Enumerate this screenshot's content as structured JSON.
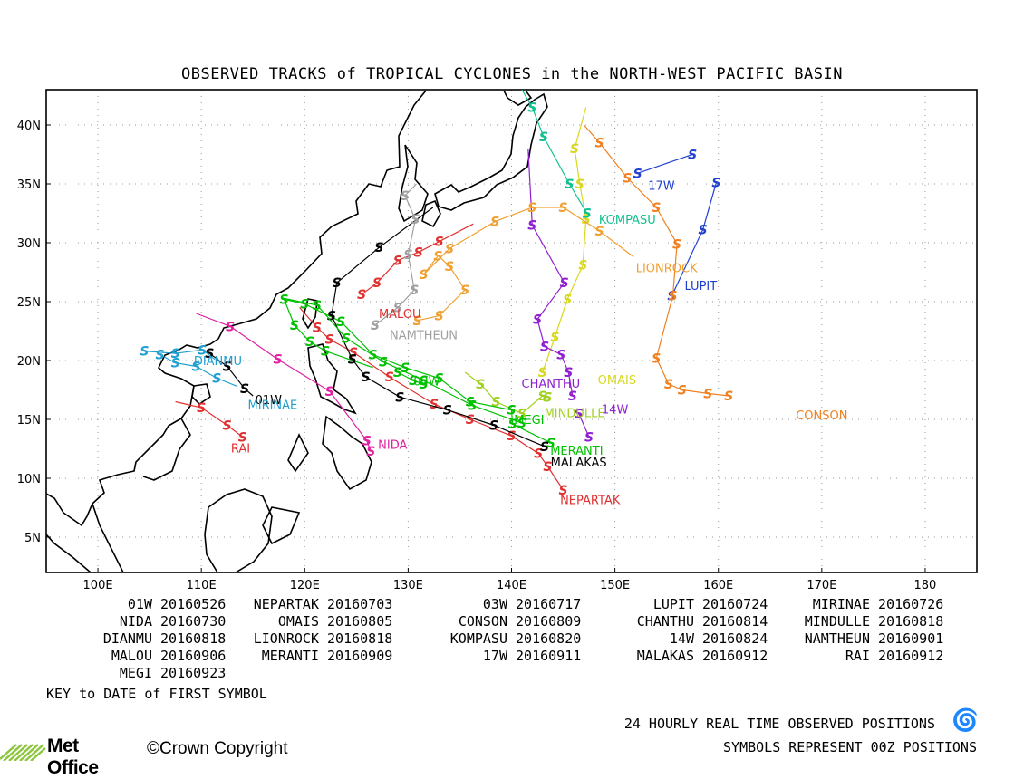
{
  "title": "OBSERVED TRACKS of TROPICAL CYCLONES in the NORTH-WEST PACIFIC BASIN",
  "map": {
    "lon_range": [
      95,
      185
    ],
    "lat_range": [
      2,
      43
    ],
    "lon_ticks": [
      {
        "value": 100,
        "label": "100E"
      },
      {
        "value": 110,
        "label": "110E"
      },
      {
        "value": 120,
        "label": "120E"
      },
      {
        "value": 130,
        "label": "130E"
      },
      {
        "value": 140,
        "label": "140E"
      },
      {
        "value": 150,
        "label": "150E"
      },
      {
        "value": 160,
        "label": "160E"
      },
      {
        "value": 170,
        "label": "170E"
      },
      {
        "value": 180,
        "label": "180"
      }
    ],
    "lat_ticks": [
      {
        "value": 5,
        "label": "5N"
      },
      {
        "value": 10,
        "label": "10N"
      },
      {
        "value": 15,
        "label": "15N"
      },
      {
        "value": 20,
        "label": "20N"
      },
      {
        "value": 25,
        "label": "25N"
      },
      {
        "value": 30,
        "label": "30N"
      },
      {
        "value": 35,
        "label": "35N"
      },
      {
        "value": 40,
        "label": "40N"
      }
    ],
    "grid": "dotted",
    "coastline_color": "#000000"
  },
  "storms": [
    {
      "name": "01W",
      "color": "#000000",
      "label_at": [
        116.5,
        16.3
      ],
      "track": [
        [
          110.8,
          20.6
        ],
        [
          112.5,
          19.5
        ],
        [
          114.2,
          17.6
        ],
        [
          115.0,
          17.0
        ]
      ]
    },
    {
      "name": "NEPARTAK",
      "color": "#e03030",
      "label_at": [
        147.6,
        7.8
      ],
      "track": [
        [
          145.0,
          9.0
        ],
        [
          143.5,
          11.0
        ],
        [
          142.6,
          12.1
        ],
        [
          140.0,
          13.6
        ],
        [
          136.0,
          15.0
        ],
        [
          132.5,
          16.3
        ],
        [
          128.2,
          18.6
        ],
        [
          124.7,
          20.7
        ],
        [
          122.4,
          21.8
        ],
        [
          121.2,
          22.8
        ],
        [
          119.5,
          24.5
        ]
      ]
    },
    {
      "name": "03W",
      "color": "#00c000",
      "label_at": [
        131.8,
        17.9
      ],
      "track": [
        [
          129.0,
          19.0
        ],
        [
          130.5,
          18.3
        ],
        [
          131.5,
          18.0
        ]
      ]
    },
    {
      "name": "LUPIT",
      "color": "#2040d0",
      "label_at": [
        158.3,
        26.0
      ],
      "track": [
        [
          159.8,
          35.1
        ],
        [
          158.5,
          31.1
        ],
        [
          155.5,
          25.5
        ]
      ]
    },
    {
      "name": "MIRINAE",
      "color": "#20a0d0",
      "label_at": [
        116.9,
        15.9
      ],
      "track": [
        [
          106.0,
          20.5
        ],
        [
          107.5,
          19.8
        ],
        [
          109.5,
          19.5
        ],
        [
          111.5,
          18.5
        ],
        [
          113.5,
          17.8
        ]
      ]
    },
    {
      "name": "NIDA",
      "color": "#e020a0",
      "label_at": [
        128.5,
        12.5
      ],
      "track": [
        [
          126.4,
          12.3
        ],
        [
          126.0,
          13.2
        ],
        [
          122.4,
          17.4
        ],
        [
          117.4,
          20.1
        ],
        [
          112.8,
          22.9
        ],
        [
          109.5,
          24.0
        ]
      ]
    },
    {
      "name": "OMAIS",
      "color": "#d8d820",
      "label_at": [
        150.2,
        18.0
      ],
      "track": [
        [
          143.0,
          19.0
        ],
        [
          144.2,
          22.0
        ],
        [
          145.4,
          25.2
        ],
        [
          146.9,
          28.1
        ],
        [
          147.2,
          32.0
        ],
        [
          146.6,
          35.0
        ],
        [
          146.1,
          38.0
        ],
        [
          147.2,
          41.5
        ]
      ]
    },
    {
      "name": "CONSON",
      "color": "#f08020",
      "label_at": [
        170.0,
        15.0
      ],
      "track": [
        [
          161.0,
          17.0
        ],
        [
          159.0,
          17.2
        ],
        [
          156.5,
          17.5
        ],
        [
          155.2,
          18.0
        ],
        [
          154.0,
          20.2
        ],
        [
          155.6,
          25.5
        ],
        [
          156.0,
          29.9
        ],
        [
          154.0,
          33.0
        ],
        [
          151.2,
          35.5
        ],
        [
          148.5,
          38.5
        ],
        [
          147.0,
          40.0
        ]
      ]
    },
    {
      "name": "CHANTHU",
      "color": "#9020d0",
      "label_at": [
        143.8,
        17.7
      ],
      "track": [
        [
          145.9,
          17.0
        ],
        [
          145.5,
          19.0
        ],
        [
          144.8,
          20.5
        ],
        [
          143.2,
          21.2
        ],
        [
          142.5,
          23.5
        ],
        [
          145.1,
          26.6
        ],
        [
          142.0,
          31.5
        ],
        [
          141.6,
          38.0
        ]
      ]
    },
    {
      "name": "MINDULLE",
      "color": "#a0d020",
      "label_at": [
        146.1,
        15.2
      ],
      "track": [
        [
          143.5,
          16.9
        ],
        [
          143.0,
          17.0
        ],
        [
          141.0,
          15.5
        ],
        [
          138.5,
          16.5
        ],
        [
          137.0,
          18.0
        ],
        [
          135.5,
          19.0
        ]
      ]
    },
    {
      "name": "14W",
      "color": "#9020d0",
      "label_at": [
        150.0,
        15.5
      ],
      "track": [
        [
          147.5,
          13.5
        ],
        [
          146.5,
          15.5
        ]
      ]
    },
    {
      "name": "KOMPASU",
      "color": "#10c090",
      "label_at": [
        151.2,
        31.6
      ],
      "track": [
        [
          147.3,
          32.5
        ],
        [
          145.6,
          35.0
        ],
        [
          143.1,
          39.0
        ],
        [
          142.0,
          41.5
        ],
        [
          141.0,
          43.0
        ]
      ]
    },
    {
      "name": "DIANMU",
      "color": "#20a0d0",
      "label_at": [
        111.6,
        19.6
      ],
      "track": [
        [
          104.5,
          20.8
        ],
        [
          107.5,
          20.6
        ],
        [
          110.1,
          20.9
        ],
        [
          111.3,
          20.1
        ]
      ]
    },
    {
      "name": "LIONROCK",
      "color": "#f0a030",
      "label_at": [
        155.0,
        27.5
      ],
      "track": [
        [
          130.9,
          23.4
        ],
        [
          130.9,
          23.4
        ],
        [
          133.0,
          23.8
        ],
        [
          135.5,
          26.0
        ],
        [
          134.0,
          28.0
        ],
        [
          132.9,
          28.9
        ],
        [
          131.5,
          27.3
        ],
        [
          134.0,
          29.5
        ],
        [
          138.4,
          31.8
        ],
        [
          142.0,
          33.0
        ],
        [
          145.0,
          33.0
        ],
        [
          148.5,
          31.0
        ],
        [
          151.8,
          28.8
        ]
      ]
    },
    {
      "name": "17W",
      "color": "#2040d0",
      "label_at": [
        154.5,
        34.5
      ],
      "track": [
        [
          152.2,
          35.9
        ],
        [
          157.5,
          37.5
        ]
      ]
    },
    {
      "name": "MALOU",
      "color": "#e03030",
      "label_at": [
        129.2,
        23.6
      ],
      "track": [
        [
          125.5,
          25.6
        ],
        [
          127.0,
          26.6
        ],
        [
          129.0,
          28.5
        ],
        [
          131.0,
          29.2
        ],
        [
          133.0,
          30.1
        ],
        [
          136.3,
          31.6
        ]
      ]
    },
    {
      "name": "MERANTI",
      "color": "#00c000",
      "label_at": [
        146.3,
        12.0
      ],
      "track": [
        [
          143.8,
          13.0
        ],
        [
          140.1,
          14.6
        ],
        [
          140.0,
          15.8
        ],
        [
          136.0,
          16.5
        ],
        [
          133.0,
          18.5
        ],
        [
          129.7,
          19.4
        ],
        [
          126.6,
          20.5
        ],
        [
          123.5,
          23.3
        ],
        [
          120.0,
          24.8
        ],
        [
          118.0,
          25.2
        ],
        [
          119.0,
          23.0
        ],
        [
          120.5,
          21.6
        ],
        [
          122.0,
          20.8
        ],
        [
          126.6,
          19.4
        ]
      ]
    },
    {
      "name": "MALAKAS",
      "color": "#000000",
      "label_at": [
        146.5,
        11.0
      ],
      "track": [
        [
          143.2,
          12.7
        ],
        [
          138.3,
          14.5
        ],
        [
          133.8,
          15.8
        ],
        [
          129.2,
          16.9
        ],
        [
          125.9,
          18.6
        ],
        [
          124.6,
          20.1
        ],
        [
          122.6,
          23.8
        ],
        [
          123.1,
          26.6
        ],
        [
          127.2,
          29.6
        ],
        [
          132.4,
          33.0
        ]
      ]
    },
    {
      "name": "MEGI",
      "color": "#00c000",
      "label_at": [
        141.7,
        14.6
      ],
      "track": [
        [
          141.0,
          14.7
        ],
        [
          136.2,
          16.2
        ],
        [
          131.5,
          18.3
        ],
        [
          127.6,
          19.9
        ],
        [
          124.0,
          21.9
        ],
        [
          121.2,
          24.7
        ],
        [
          117.9,
          25.3
        ]
      ]
    },
    {
      "name": "NAMTHEUN",
      "color": "#a0a0a0",
      "label_at": [
        131.5,
        21.8
      ],
      "track": [
        [
          126.8,
          23.0
        ],
        [
          129.0,
          24.5
        ],
        [
          130.6,
          26.0
        ],
        [
          130.0,
          29.0
        ],
        [
          130.7,
          32.0
        ],
        [
          129.7,
          34.0
        ],
        [
          130.8,
          35.0
        ]
      ]
    },
    {
      "name": "RAI",
      "color": "#e03030",
      "label_at": [
        113.8,
        12.2
      ],
      "track": [
        [
          114.0,
          13.5
        ],
        [
          112.5,
          14.5
        ],
        [
          110.0,
          16.0
        ],
        [
          107.5,
          16.5
        ]
      ]
    }
  ],
  "legend": {
    "rows": [
      [
        {
          "name": "01W",
          "date": "20160526"
        },
        {
          "name": "NEPARTAK",
          "date": "20160703"
        },
        {
          "name": "03W",
          "date": "20160717"
        },
        {
          "name": "LUPIT",
          "date": "20160724"
        },
        {
          "name": "MIRINAE",
          "date": "20160726"
        }
      ],
      [
        {
          "name": "NIDA",
          "date": "20160730"
        },
        {
          "name": "OMAIS",
          "date": "20160805"
        },
        {
          "name": "CONSON",
          "date": "20160809"
        },
        {
          "name": "CHANTHU",
          "date": "20160814"
        },
        {
          "name": "MINDULLE",
          "date": "20160818"
        }
      ],
      [
        {
          "name": "DIANMU",
          "date": "20160818"
        },
        {
          "name": "LIONROCK",
          "date": "20160818"
        },
        {
          "name": "KOMPASU",
          "date": "20160820"
        },
        {
          "name": "14W",
          "date": "20160824"
        },
        {
          "name": "NAMTHEUN",
          "date": "20160901"
        }
      ],
      [
        {
          "name": "MALOU",
          "date": "20160906"
        },
        {
          "name": "MERANTI",
          "date": "20160909"
        },
        {
          "name": "17W",
          "date": "20160911"
        },
        {
          "name": "MALAKAS",
          "date": "20160912"
        },
        {
          "name": "RAI",
          "date": "20160912"
        }
      ],
      [
        {
          "name": "MEGI",
          "date": "20160923"
        }
      ]
    ],
    "key_note": "KEY to DATE of FIRST SYMBOL"
  },
  "footer": {
    "line1": "24 HOURLY REAL TIME OBSERVED POSITIONS",
    "line2": "SYMBOLS REPRESENT 00Z POSITIONS",
    "symbol": "cyclone-symbol-icon",
    "brand": "Met Office",
    "copyright": "©Crown Copyright"
  }
}
